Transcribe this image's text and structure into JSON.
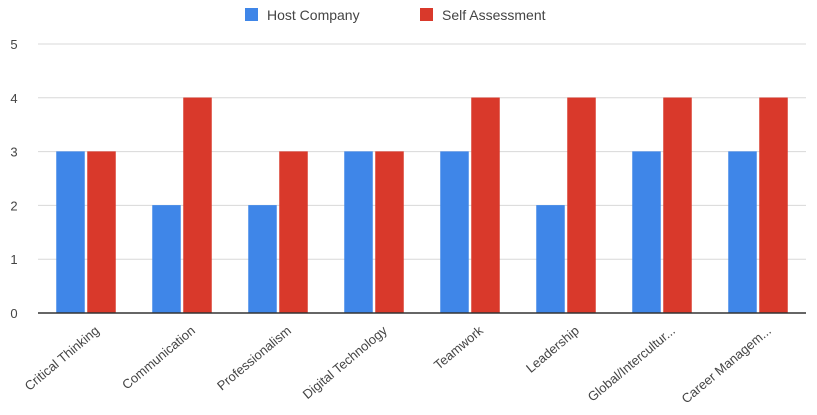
{
  "chart_data": {
    "type": "bar",
    "title": "",
    "xlabel": "",
    "ylabel": "",
    "ylim": [
      0,
      5
    ],
    "yticks": [
      0,
      1,
      2,
      3,
      4,
      5
    ],
    "grid": true,
    "legend_position": "top",
    "categories": [
      "Critical Thinking",
      "Communication",
      "Professionalism",
      "Digital Technology",
      "Teamwork",
      "Leadership",
      "Global/Intercultur...",
      "Career Managem..."
    ],
    "series": [
      {
        "name": "Host Company",
        "color": "#3f86e8",
        "values": [
          3,
          2,
          2,
          3,
          3,
          2,
          3,
          3
        ]
      },
      {
        "name": "Self Assessment",
        "color": "#d9392b",
        "values": [
          3,
          4,
          3,
          3,
          4,
          4,
          4,
          4
        ]
      }
    ]
  }
}
